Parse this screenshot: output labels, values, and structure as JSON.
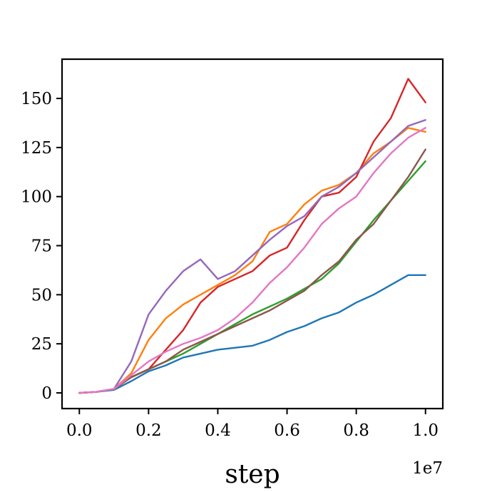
{
  "chart_data": {
    "type": "line",
    "title": "",
    "xlabel": "step",
    "ylabel": "",
    "x_offset_label": "1e7",
    "xlim": [
      -0.05,
      1.05
    ],
    "ylim": [
      -8,
      170
    ],
    "x_ticks": [
      0.0,
      0.2,
      0.4,
      0.6,
      0.8,
      1.0
    ],
    "x_tick_labels": [
      "0.0",
      "0.2",
      "0.4",
      "0.6",
      "0.8",
      "1.0"
    ],
    "y_ticks": [
      0,
      25,
      50,
      75,
      100,
      125,
      150
    ],
    "y_tick_labels": [
      "0",
      "25",
      "50",
      "75",
      "100",
      "125",
      "150"
    ],
    "grid": false,
    "legend": "none",
    "x": [
      0.0,
      0.05,
      0.1,
      0.15,
      0.2,
      0.25,
      0.3,
      0.35,
      0.4,
      0.45,
      0.5,
      0.55,
      0.6,
      0.65,
      0.7,
      0.75,
      0.8,
      0.85,
      0.9,
      0.95,
      1.0
    ],
    "series": [
      {
        "color": "#1f77b4",
        "values": [
          0,
          0.5,
          1.5,
          6,
          11,
          14,
          18,
          20,
          22,
          23,
          24,
          27,
          31,
          34,
          38,
          41,
          46,
          50,
          55,
          60,
          60
        ]
      },
      {
        "color": "#ff7f0e",
        "values": [
          0,
          0.5,
          2,
          10,
          27,
          38,
          45,
          50,
          55,
          60,
          67,
          82,
          86,
          96,
          103,
          106,
          112,
          122,
          128,
          135,
          133
        ]
      },
      {
        "color": "#2ca02c",
        "values": [
          0,
          0.5,
          2,
          8,
          12,
          16,
          20,
          25,
          30,
          35,
          40,
          44,
          48,
          53,
          58,
          66,
          77,
          88,
          98,
          108,
          118
        ]
      },
      {
        "color": "#d62728",
        "values": [
          0,
          0.5,
          2,
          8,
          12,
          22,
          32,
          46,
          54,
          58,
          62,
          70,
          74,
          88,
          100,
          102,
          110,
          128,
          140,
          160,
          148
        ]
      },
      {
        "color": "#9467bd",
        "values": [
          0,
          0.5,
          2,
          16,
          40,
          52,
          62,
          68,
          58,
          62,
          70,
          78,
          85,
          90,
          100,
          105,
          112,
          120,
          128,
          136,
          139
        ]
      },
      {
        "color": "#8c564b",
        "values": [
          0,
          0.5,
          2,
          8,
          12,
          16,
          22,
          26,
          30,
          34,
          38,
          42,
          47,
          52,
          60,
          67,
          78,
          86,
          98,
          110,
          124
        ]
      },
      {
        "color": "#e377c2",
        "values": [
          0,
          0.5,
          2,
          9,
          16,
          21,
          25,
          28,
          32,
          38,
          46,
          56,
          64,
          74,
          86,
          94,
          100,
          112,
          122,
          130,
          135
        ]
      }
    ]
  }
}
